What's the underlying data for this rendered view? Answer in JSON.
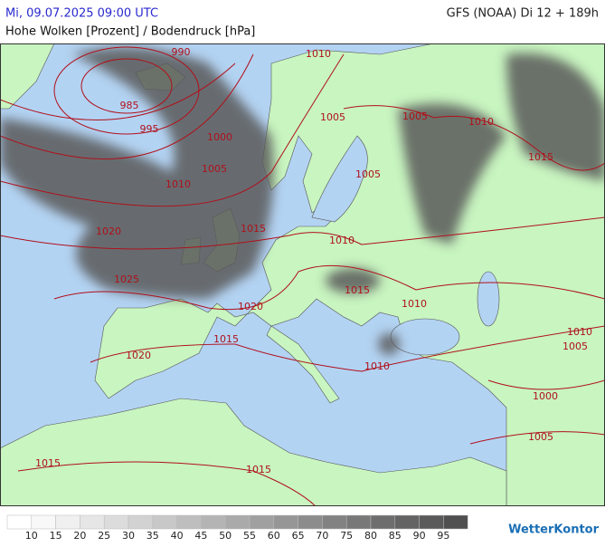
{
  "header": {
    "datetime": "Mi, 09.07.2025 09:00 UTC",
    "model": "GFS (NOAA) Di 12 + 189h",
    "subtitle": "Hohe Wolken [Prozent] / Bodendruck [hPa]"
  },
  "isobar_labels": [
    990,
    1010,
    985,
    995,
    1000,
    1005,
    1005,
    1005,
    1010,
    1015,
    1005,
    1010,
    1020,
    1015,
    1010,
    1025,
    1015,
    1010,
    1020,
    1015,
    1020,
    1010,
    1010,
    1005,
    1000,
    1005,
    1015,
    1015
  ],
  "legend": {
    "colors": [
      "#ffffff",
      "#f8f8f8",
      "#f0f0f0",
      "#e6e6e6",
      "#dcdcdc",
      "#d2d2d2",
      "#c8c8c8",
      "#bebebe",
      "#b4b4b4",
      "#aaaaaa",
      "#a0a0a0",
      "#969696",
      "#8c8c8c",
      "#828282",
      "#787878",
      "#6e6e6e",
      "#646464",
      "#5a5a5a",
      "#505050"
    ],
    "ticks": [
      10,
      15,
      20,
      25,
      30,
      35,
      40,
      45,
      50,
      55,
      60,
      65,
      70,
      75,
      80,
      85,
      90,
      95
    ]
  },
  "logo": "WetterKontor"
}
